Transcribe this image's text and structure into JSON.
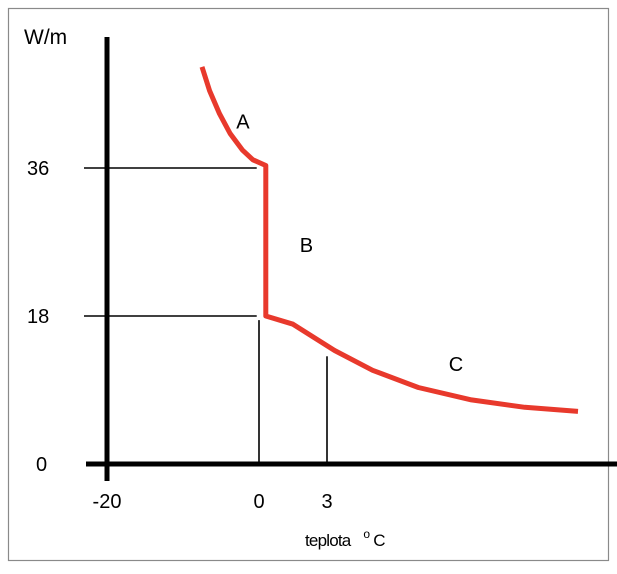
{
  "chart_data": {
    "type": "line",
    "ylabel": "W/m",
    "xlabel": "teplota",
    "xunit": "°C",
    "xlabel_parts": [
      "teplota",
      "o",
      "C"
    ],
    "x_ticks": [
      "-20",
      "0",
      "3"
    ],
    "y_ticks": [
      "0",
      "18",
      "36"
    ],
    "x_tick_values": [
      -20,
      0,
      3
    ],
    "y_tick_values": [
      0,
      18,
      36
    ],
    "grid": false,
    "legend": "none",
    "series": [
      {
        "color": "#e8392c",
        "points": [
          {
            "x": -7.5,
            "y": 48.3
          },
          {
            "x": -6.5,
            "y": 45.4
          },
          {
            "x": -5.2,
            "y": 42.6
          },
          {
            "x": -3.8,
            "y": 40.2
          },
          {
            "x": -2.2,
            "y": 38.2
          },
          {
            "x": -0.8,
            "y": 37.0
          },
          {
            "x": 0.3,
            "y": 36.3
          },
          {
            "x": 0.3,
            "y": 18.0
          },
          {
            "x": 1.5,
            "y": 17.0
          },
          {
            "x": 3.5,
            "y": 13.8
          },
          {
            "x": 6.0,
            "y": 11.4
          },
          {
            "x": 9.0,
            "y": 9.3
          },
          {
            "x": 12.5,
            "y": 7.8
          },
          {
            "x": 16.0,
            "y": 6.9
          },
          {
            "x": 19.5,
            "y": 6.4
          }
        ]
      }
    ],
    "segment_labels": [
      {
        "text": "A",
        "x": -3.0,
        "y": 40.8
      },
      {
        "text": "B",
        "x": 1.8,
        "y": 25.8
      },
      {
        "text": "C",
        "x": 11.0,
        "y": 11.3
      }
    ],
    "reference_lines": [
      {
        "type": "h",
        "y": 36,
        "x_from": -20,
        "x_to": -0.3
      },
      {
        "type": "h",
        "y": 18,
        "x_from": -20,
        "x_to": -0.3
      },
      {
        "type": "v",
        "x": 0,
        "y_from": 0,
        "y_to": 17.5
      },
      {
        "type": "v",
        "x": 3,
        "y_from": 0,
        "y_to": 13.1
      }
    ]
  }
}
